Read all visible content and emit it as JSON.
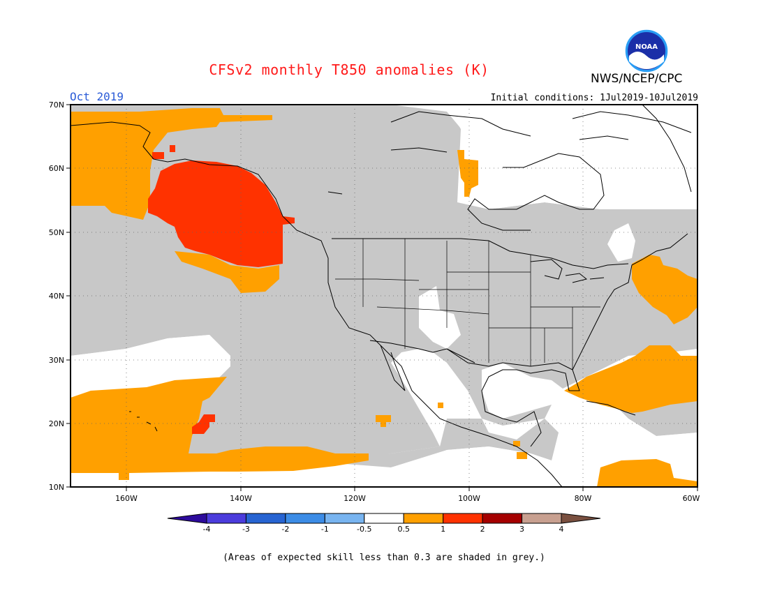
{
  "header": {
    "title": "CFSv2 monthly T850 anomalies (K)",
    "month": "Oct 2019",
    "initial_conditions": "Initial conditions: 1Jul2019-10Jul2019",
    "agency": "NWS/NCEP/CPC",
    "logo_text": "NOAA"
  },
  "map": {
    "lon_range": [
      -170,
      -60
    ],
    "lat_range": [
      10,
      70
    ],
    "lat_ticks": [
      "70N",
      "60N",
      "50N",
      "40N",
      "30N",
      "20N",
      "10N"
    ],
    "lon_ticks": [
      "160W",
      "140W",
      "120W",
      "100W",
      "80W",
      "60W"
    ],
    "colors": {
      "grey_low_skill": "#c8c8c8",
      "anom_0_5_to_1": "#ffa000",
      "anom_1_to_2": "#ff3200",
      "land_outline": "#000000"
    },
    "regions": [
      {
        "name": "alaska-bering-warm",
        "category": "0.5 to 1"
      },
      {
        "name": "gulf-of-alaska-strong-warm",
        "category": "1 to 2"
      },
      {
        "name": "hawaii-subtropics-warm",
        "category": "0.5 to 1"
      },
      {
        "name": "northwest-atlantic-warm",
        "category": "0.5 to 1"
      },
      {
        "name": "subtropical-atlantic-warm",
        "category": "0.5 to 1"
      },
      {
        "name": "caribbean-warm",
        "category": "0.5 to 1"
      },
      {
        "name": "hudson-bay-warm",
        "category": "0.5 to 1"
      }
    ]
  },
  "colorbar": {
    "labels": [
      "-4",
      "-3",
      "-2",
      "-1",
      "-0.5",
      "0.5",
      "1",
      "2",
      "3",
      "4"
    ],
    "colors": [
      "#2d0b9c",
      "#4b3cdc",
      "#2764d2",
      "#3c8ce6",
      "#78b4f0",
      "#ffffff",
      "#ffa000",
      "#ff3200",
      "#a50000",
      "#c8a090",
      "#7a5040"
    ]
  },
  "footnote": "(Areas of expected skill less than 0.3 are shaded in grey.)"
}
